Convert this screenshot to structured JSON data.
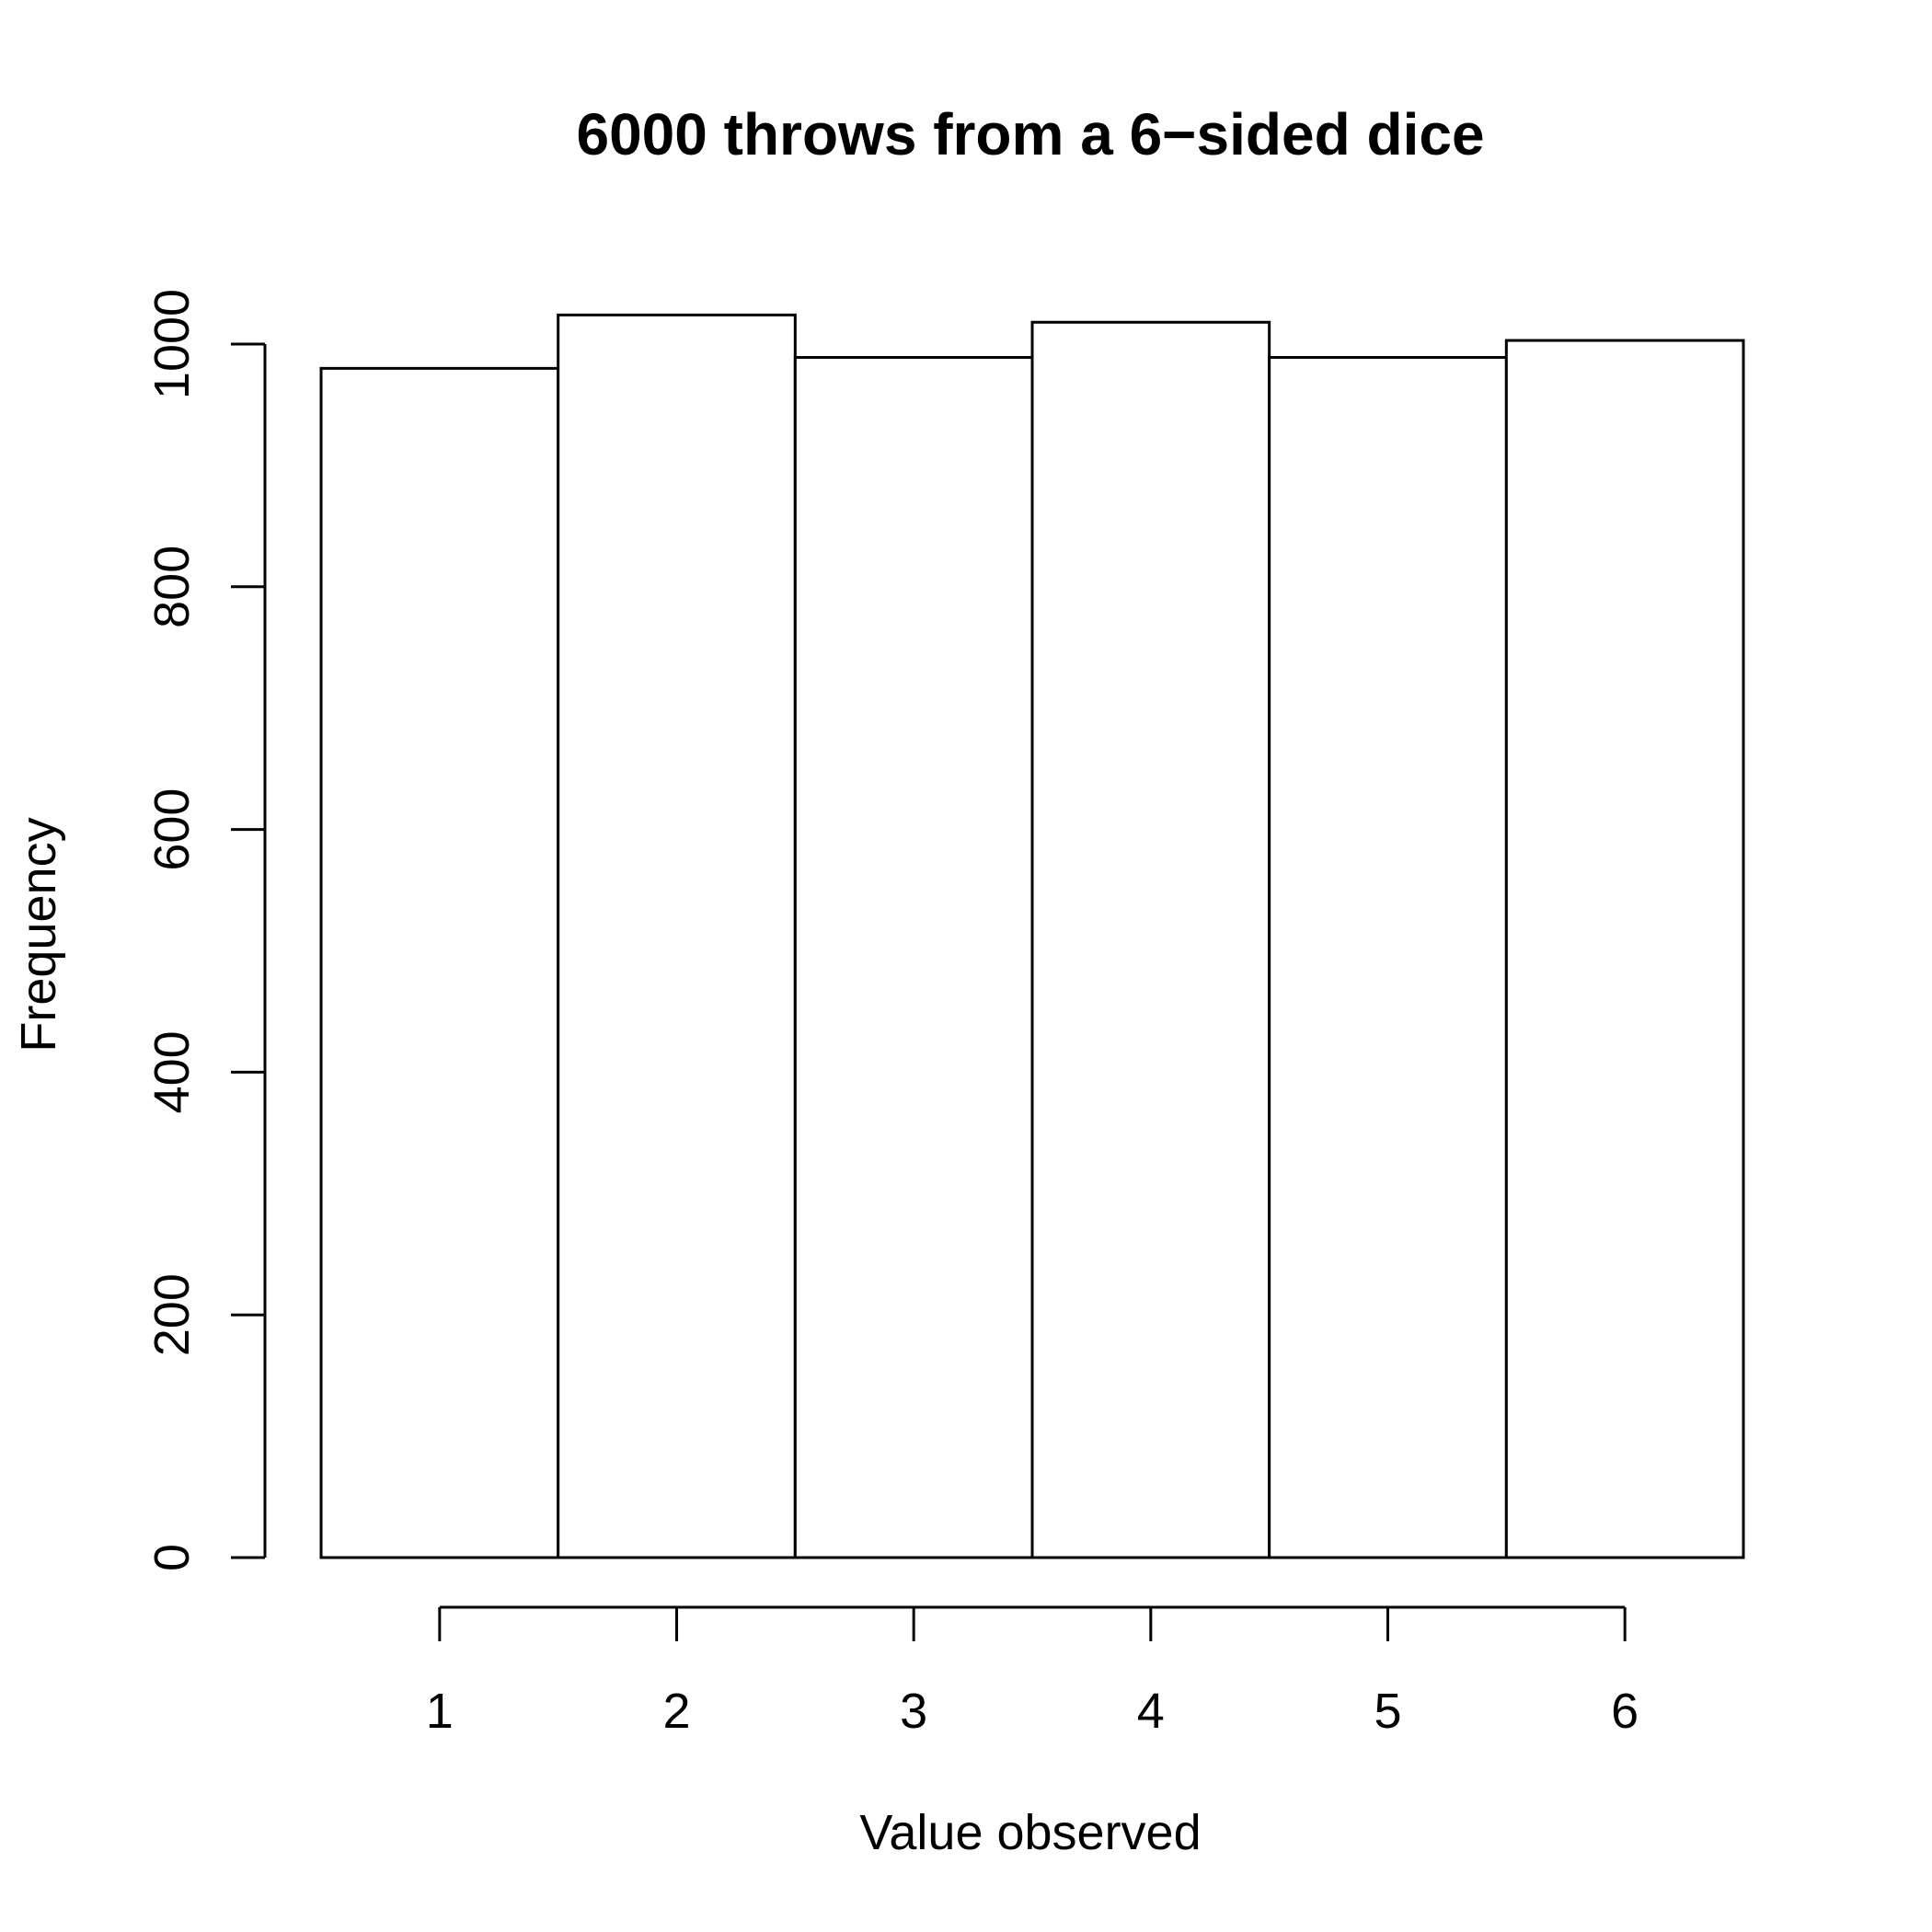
{
  "chart_data": {
    "type": "bar",
    "title": "6000 throws from a 6−sided dice",
    "xlabel": "Value observed",
    "ylabel": "Frequency",
    "categories": [
      "1",
      "2",
      "3",
      "4",
      "5",
      "6"
    ],
    "values": [
      980,
      1024,
      989,
      1018,
      989,
      1003
    ],
    "ylim": [
      0,
      1000
    ],
    "yticks": [
      0,
      200,
      400,
      600,
      800,
      1000
    ],
    "xticks": [
      "1",
      "2",
      "3",
      "4",
      "5",
      "6"
    ],
    "grid": false,
    "colors": {
      "bar_fill": "#ffffff",
      "bar_stroke": "#000000"
    }
  }
}
